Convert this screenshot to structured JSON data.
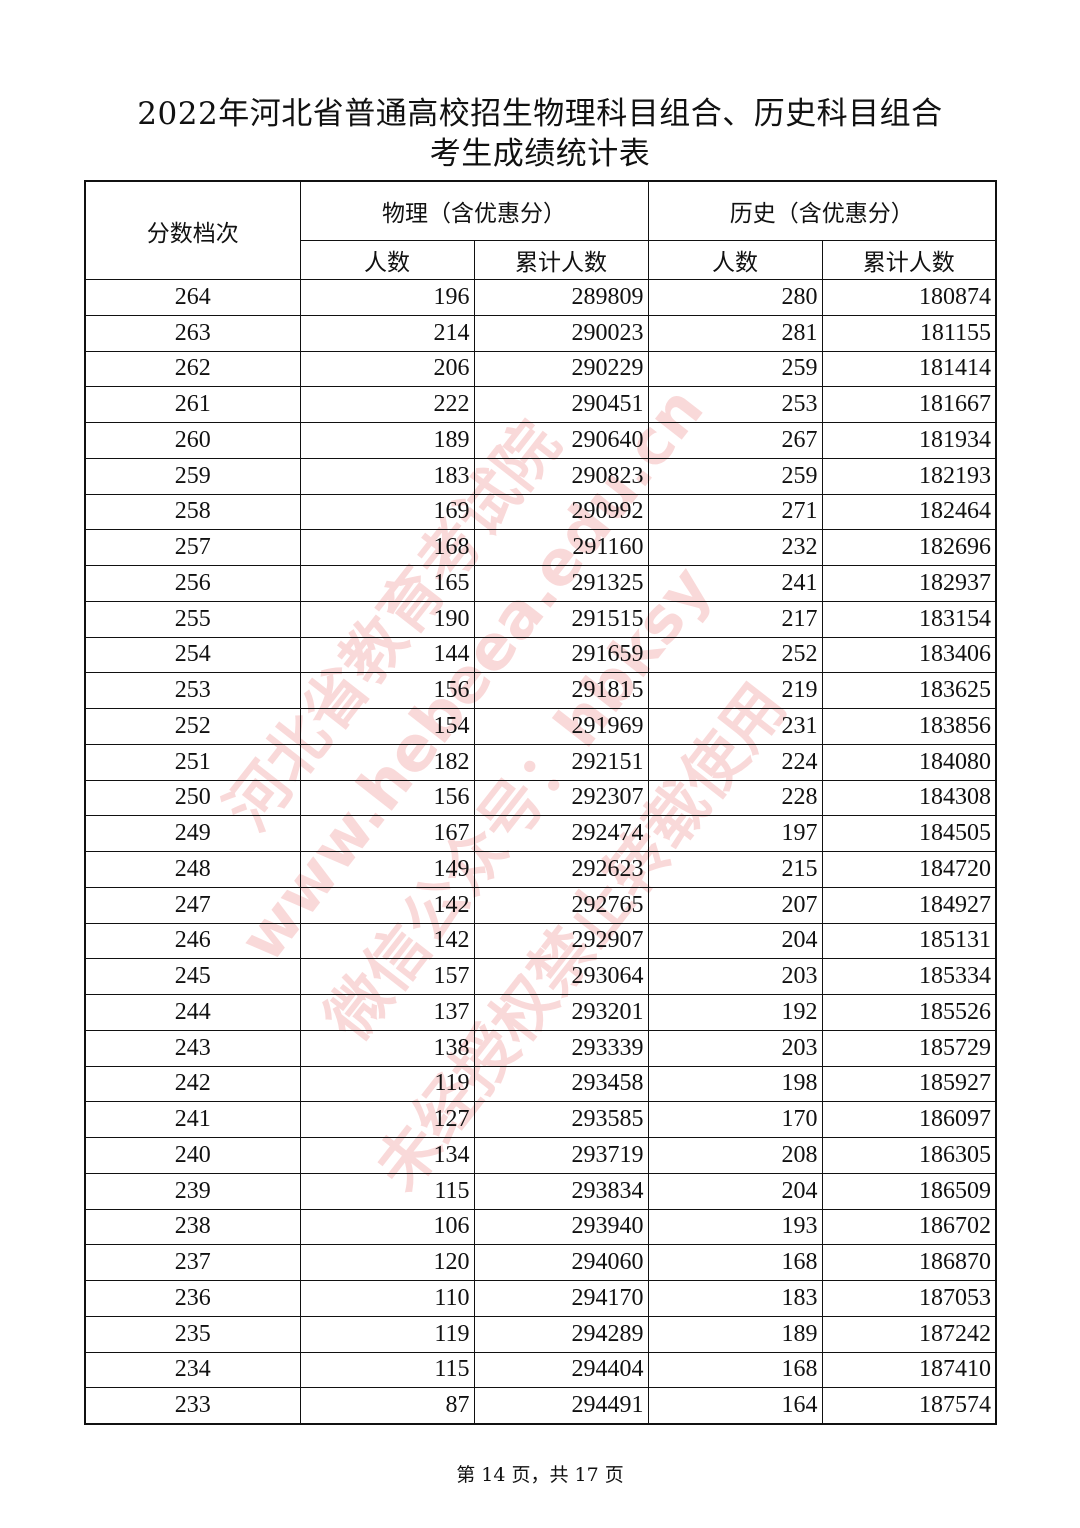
{
  "title_line1": "2022年河北省普通高校招生物理科目组合、历史科目组合",
  "title_line2": "考生成绩统计表",
  "headers": {
    "score": "分数档次",
    "physics": "物理（含优惠分）",
    "history": "历史（含优惠分）",
    "count": "人数",
    "cumulative": "累计人数"
  },
  "rows": [
    [
      264,
      196,
      289809,
      280,
      180874
    ],
    [
      263,
      214,
      290023,
      281,
      181155
    ],
    [
      262,
      206,
      290229,
      259,
      181414
    ],
    [
      261,
      222,
      290451,
      253,
      181667
    ],
    [
      260,
      189,
      290640,
      267,
      181934
    ],
    [
      259,
      183,
      290823,
      259,
      182193
    ],
    [
      258,
      169,
      290992,
      271,
      182464
    ],
    [
      257,
      168,
      291160,
      232,
      182696
    ],
    [
      256,
      165,
      291325,
      241,
      182937
    ],
    [
      255,
      190,
      291515,
      217,
      183154
    ],
    [
      254,
      144,
      291659,
      252,
      183406
    ],
    [
      253,
      156,
      291815,
      219,
      183625
    ],
    [
      252,
      154,
      291969,
      231,
      183856
    ],
    [
      251,
      182,
      292151,
      224,
      184080
    ],
    [
      250,
      156,
      292307,
      228,
      184308
    ],
    [
      249,
      167,
      292474,
      197,
      184505
    ],
    [
      248,
      149,
      292623,
      215,
      184720
    ],
    [
      247,
      142,
      292765,
      207,
      184927
    ],
    [
      246,
      142,
      292907,
      204,
      185131
    ],
    [
      245,
      157,
      293064,
      203,
      185334
    ],
    [
      244,
      137,
      293201,
      192,
      185526
    ],
    [
      243,
      138,
      293339,
      203,
      185729
    ],
    [
      242,
      119,
      293458,
      198,
      185927
    ],
    [
      241,
      127,
      293585,
      170,
      186097
    ],
    [
      240,
      134,
      293719,
      208,
      186305
    ],
    [
      239,
      115,
      293834,
      204,
      186509
    ],
    [
      238,
      106,
      293940,
      193,
      186702
    ],
    [
      237,
      120,
      294060,
      168,
      186870
    ],
    [
      236,
      110,
      294170,
      183,
      187053
    ],
    [
      235,
      119,
      294289,
      189,
      187242
    ],
    [
      234,
      115,
      294404,
      168,
      187410
    ],
    [
      233,
      87,
      294491,
      164,
      187574
    ]
  ],
  "footer": "第 14 页，共 17 页",
  "watermark": [
    "河北省教育考试院",
    "www.hebeea.edu.cn",
    "微信公众号：hbksy",
    "未经授权禁止转载使用"
  ],
  "watermark_color": "#eb7878"
}
